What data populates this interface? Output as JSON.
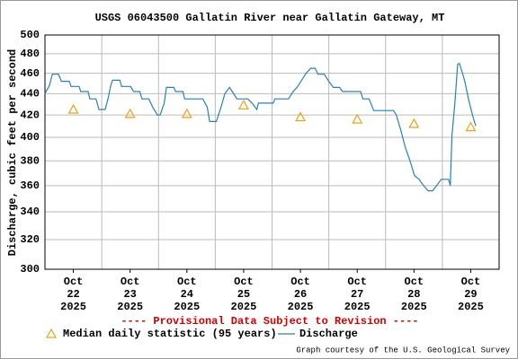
{
  "chart_data": {
    "type": "line",
    "title": "USGS 06043500 Gallatin River near Gallatin Gateway, MT",
    "ylabel": "Discharge, cubic feet per second",
    "annotation": "---- Provisional Data Subject to Revision ----",
    "credit": "Graph courtesy of the U.S. Geological Survey",
    "xlim": [
      22,
      30
    ],
    "xticks": [
      {
        "value": 22.5,
        "label": "Oct 22 2025"
      },
      {
        "value": 23.5,
        "label": "Oct 23 2025"
      },
      {
        "value": 24.5,
        "label": "Oct 24 2025"
      },
      {
        "value": 25.5,
        "label": "Oct 25 2025"
      },
      {
        "value": 26.5,
        "label": "Oct 26 2025"
      },
      {
        "value": 27.5,
        "label": "Oct 27 2025"
      },
      {
        "value": 28.5,
        "label": "Oct 28 2025"
      },
      {
        "value": 29.5,
        "label": "Oct 29 2025"
      }
    ],
    "ylim": [
      300,
      500
    ],
    "yticks": [
      300,
      320,
      340,
      360,
      380,
      400,
      420,
      440,
      460,
      480,
      500
    ],
    "log_y": true,
    "grid": true,
    "series": [
      {
        "name": "Median daily statistic (95 years)",
        "color": "#e8a317",
        "marker": "triangle",
        "x": [
          22.5,
          23.5,
          24.5,
          25.5,
          26.5,
          27.5,
          28.5,
          29.5
        ],
        "values": [
          425,
          421,
          421,
          429,
          418,
          416,
          412,
          409
        ]
      },
      {
        "name": "Discharge",
        "color": "#2a7fb5",
        "x": [
          22.0,
          22.08,
          22.13,
          22.24,
          22.29,
          22.43,
          22.46,
          22.6,
          22.63,
          22.76,
          22.79,
          22.9,
          22.95,
          23.06,
          23.11,
          23.16,
          23.19,
          23.32,
          23.35,
          23.51,
          23.56,
          23.67,
          23.71,
          23.83,
          23.9,
          23.98,
          24.03,
          24.1,
          24.14,
          24.27,
          24.3,
          24.43,
          24.46,
          24.78,
          24.86,
          24.9,
          25.02,
          25.1,
          25.17,
          25.25,
          25.3,
          25.38,
          25.57,
          25.65,
          25.73,
          25.76,
          26.02,
          26.05,
          26.29,
          26.37,
          26.44,
          26.6,
          26.68,
          26.76,
          26.81,
          26.92,
          27.0,
          27.08,
          27.19,
          27.24,
          27.56,
          27.6,
          27.71,
          27.79,
          28.14,
          28.19,
          28.27,
          28.35,
          28.43,
          28.51,
          28.59,
          28.67,
          28.75,
          28.83,
          28.9,
          28.98,
          29.11,
          29.14,
          29.17,
          29.22,
          29.27,
          29.3,
          29.35,
          29.4,
          29.46,
          29.54,
          29.59
        ],
        "values": [
          440,
          448,
          459,
          459,
          452,
          452,
          447,
          447,
          442,
          442,
          435,
          435,
          425,
          425,
          435,
          448,
          453,
          453,
          447,
          447,
          442,
          442,
          435,
          435,
          427,
          420,
          420,
          431,
          446,
          446,
          442,
          442,
          435,
          435,
          427,
          414,
          414,
          427,
          440,
          446,
          442,
          435,
          435,
          431,
          425,
          431,
          431,
          435,
          435,
          442,
          446,
          460,
          465,
          465,
          459,
          459,
          452,
          446,
          446,
          442,
          442,
          435,
          435,
          424,
          424,
          420,
          406,
          391,
          380,
          368,
          365,
          360,
          356,
          356,
          360,
          365,
          365,
          360,
          402,
          431,
          469,
          470,
          461,
          451,
          435,
          418,
          410
        ]
      }
    ]
  }
}
